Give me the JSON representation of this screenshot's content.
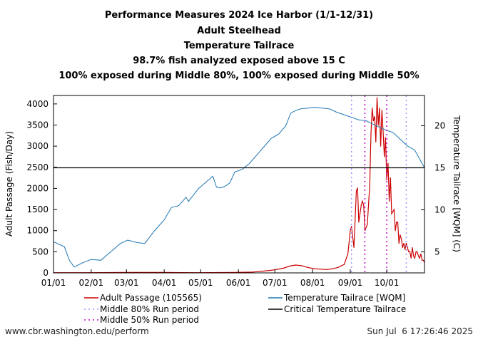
{
  "titles": [
    "Performance Measures 2024 Ice Harbor (1/1-12/31)",
    "Adult Steelhead",
    "Temperature Tailrace",
    "98.7% fish analyzed exposed above 15 C",
    "100% exposed during Middle 80%, 100% exposed during Middle 50%"
  ],
  "footer": {
    "left": "www.cbr.washington.edu/perform",
    "right": "Sun Jul  6 17:26:46 2025"
  },
  "chart_data": {
    "type": "line",
    "xlabel": "",
    "ylabel_left": "Adult Passage (Fish/Day)",
    "ylabel_right": "Temperature Tailrace [WQM] (C)",
    "x_ticks": [
      "01/01",
      "02/01",
      "03/01",
      "04/01",
      "05/01",
      "06/01",
      "07/01",
      "08/01",
      "09/01",
      "10/01"
    ],
    "x_tick_doy": [
      1,
      32,
      61,
      92,
      122,
      153,
      183,
      214,
      245,
      275
    ],
    "xlim_doy": [
      1,
      306
    ],
    "ylim_left": [
      0,
      4200
    ],
    "y_ticks_left": [
      0,
      500,
      1000,
      1500,
      2000,
      2500,
      3000,
      3500,
      4000
    ],
    "ylim_right": [
      2.5,
      23.6
    ],
    "y_ticks_right": [
      5,
      10,
      15,
      20
    ],
    "critical_temperature": 15,
    "middle80_doy": [
      246,
      291
    ],
    "middle50_doy": [
      257,
      275
    ],
    "grid": false,
    "legend_placement": "bottom",
    "legend": {
      "passage": "Adult Passage (105565)",
      "temperature": "Temperature Tailrace [WQM]",
      "mid80": "Middle 80% Run period",
      "critical": "Critical Temperature Tailrace",
      "mid50": "Middle 50% Run period"
    },
    "colors": {
      "passage": "#cc0000",
      "temperature": "#1f77b4",
      "critical": "#000000",
      "mid80": "#9999ff",
      "mid50": "#cc00cc"
    },
    "series": [
      {
        "name": "Temperature Tailrace [WQM]",
        "axis": "right",
        "points": [
          [
            1,
            6.2
          ],
          [
            10,
            5.6
          ],
          [
            14,
            4.0
          ],
          [
            18,
            3.2
          ],
          [
            25,
            3.7
          ],
          [
            32,
            4.1
          ],
          [
            40,
            4.0
          ],
          [
            48,
            5.0
          ],
          [
            56,
            6.0
          ],
          [
            62,
            6.4
          ],
          [
            70,
            6.1
          ],
          [
            76,
            6.0
          ],
          [
            84,
            7.5
          ],
          [
            92,
            8.8
          ],
          [
            98,
            10.3
          ],
          [
            104,
            10.5
          ],
          [
            110,
            11.5
          ],
          [
            112,
            11.0
          ],
          [
            120,
            12.5
          ],
          [
            128,
            13.5
          ],
          [
            132,
            14.0
          ],
          [
            135,
            12.7
          ],
          [
            138,
            12.6
          ],
          [
            142,
            12.8
          ],
          [
            146,
            13.2
          ],
          [
            150,
            14.5
          ],
          [
            156,
            14.8
          ],
          [
            162,
            15.5
          ],
          [
            168,
            16.5
          ],
          [
            174,
            17.5
          ],
          [
            180,
            18.5
          ],
          [
            186,
            19.0
          ],
          [
            192,
            20.0
          ],
          [
            196,
            21.5
          ],
          [
            200,
            21.8
          ],
          [
            204,
            22.0
          ],
          [
            210,
            22.1
          ],
          [
            216,
            22.2
          ],
          [
            222,
            22.1
          ],
          [
            228,
            22.0
          ],
          [
            234,
            21.6
          ],
          [
            240,
            21.3
          ],
          [
            246,
            21.0
          ],
          [
            252,
            20.7
          ],
          [
            258,
            20.6
          ],
          [
            262,
            20.3
          ],
          [
            268,
            19.9
          ],
          [
            274,
            19.5
          ],
          [
            280,
            19.2
          ],
          [
            286,
            18.4
          ],
          [
            292,
            17.6
          ],
          [
            298,
            17.1
          ],
          [
            306,
            15.0
          ]
        ]
      },
      {
        "name": "Adult Passage (105565)",
        "axis": "left",
        "points": [
          [
            1,
            5
          ],
          [
            30,
            5
          ],
          [
            60,
            10
          ],
          [
            90,
            10
          ],
          [
            120,
            5
          ],
          [
            150,
            10
          ],
          [
            165,
            20
          ],
          [
            180,
            60
          ],
          [
            190,
            110
          ],
          [
            195,
            160
          ],
          [
            200,
            185
          ],
          [
            205,
            170
          ],
          [
            210,
            130
          ],
          [
            215,
            100
          ],
          [
            220,
            90
          ],
          [
            225,
            80
          ],
          [
            230,
            95
          ],
          [
            235,
            130
          ],
          [
            240,
            200
          ],
          [
            243,
            450
          ],
          [
            245,
            1000
          ],
          [
            246,
            1100
          ],
          [
            248,
            600
          ],
          [
            250,
            1950
          ],
          [
            251,
            2000
          ],
          [
            252,
            1200
          ],
          [
            254,
            1600
          ],
          [
            255,
            1700
          ],
          [
            256,
            1600
          ],
          [
            257,
            1000
          ],
          [
            259,
            1150
          ],
          [
            261,
            2100
          ],
          [
            262,
            3300
          ],
          [
            263,
            3900
          ],
          [
            264,
            3600
          ],
          [
            265,
            3700
          ],
          [
            266,
            3100
          ],
          [
            267,
            4150
          ],
          [
            268,
            3500
          ],
          [
            269,
            3900
          ],
          [
            270,
            3000
          ],
          [
            271,
            3850
          ],
          [
            272,
            3350
          ],
          [
            273,
            2750
          ],
          [
            274,
            3200
          ],
          [
            275,
            2200
          ],
          [
            276,
            2600
          ],
          [
            277,
            1700
          ],
          [
            278,
            2250
          ],
          [
            279,
            1400
          ],
          [
            280,
            1450
          ],
          [
            281,
            1500
          ],
          [
            282,
            1000
          ],
          [
            283,
            1200
          ],
          [
            284,
            1200
          ],
          [
            285,
            700
          ],
          [
            286,
            900
          ],
          [
            287,
            800
          ],
          [
            288,
            600
          ],
          [
            289,
            700
          ],
          [
            290,
            550
          ],
          [
            291,
            700
          ],
          [
            292,
            600
          ],
          [
            293,
            500
          ],
          [
            294,
            500
          ],
          [
            295,
            350
          ],
          [
            296,
            600
          ],
          [
            297,
            400
          ],
          [
            298,
            350
          ],
          [
            299,
            500
          ],
          [
            300,
            500
          ],
          [
            301,
            400
          ],
          [
            302,
            350
          ],
          [
            303,
            450
          ],
          [
            304,
            300
          ],
          [
            305,
            300
          ],
          [
            306,
            250
          ]
        ]
      }
    ]
  }
}
